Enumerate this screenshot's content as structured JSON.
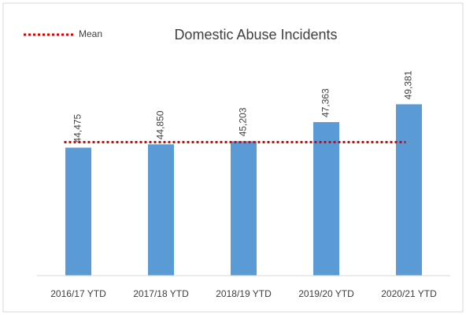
{
  "chart_data": {
    "type": "bar",
    "title": "Domestic Abuse Incidents",
    "categories": [
      "2016/17 YTD",
      "2017/18 YTD",
      "2018/19 YTD",
      "2019/20 YTD",
      "2020/21 YTD"
    ],
    "values": [
      44475,
      44850,
      45203,
      47363,
      49381
    ],
    "value_labels": [
      "44,475",
      "44,850",
      "45,203",
      "47,363",
      "49,381"
    ],
    "color": "#5b9bd5",
    "ylim": [
      30000,
      52000
    ],
    "mean_line": {
      "name": "Mean",
      "value": 45100,
      "color": "#e00000"
    }
  }
}
